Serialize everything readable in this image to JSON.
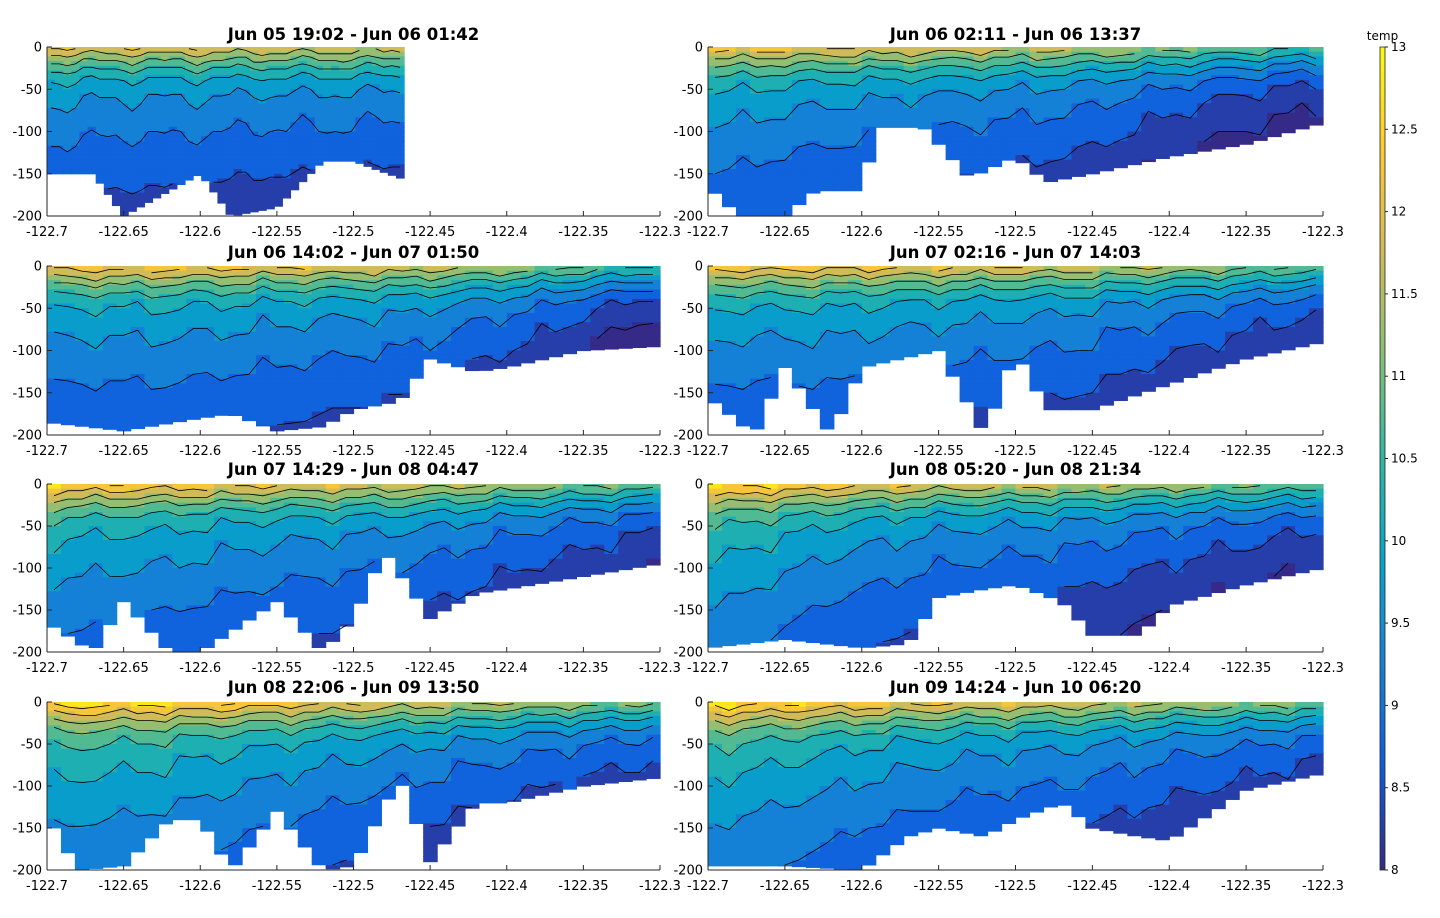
{
  "chart_data": {
    "type": "contour",
    "panels": [
      {
        "title": "Jun 05 19:02 - Jun 06 01:42",
        "xlim": [
          -122.7,
          -122.3
        ],
        "ylim": [
          -200,
          0
        ],
        "data_xrange": [
          -122.7,
          -122.467
        ],
        "surface_temp": [
          12.0,
          11.9,
          11.9,
          11.8,
          11.8,
          11.7
        ],
        "bottom_x": [
          -122.7,
          -122.67,
          -122.65,
          -122.6,
          -122.58,
          -122.55,
          -122.52,
          -122.5,
          -122.47
        ],
        "bottom_depth": [
          -150,
          -150,
          -200,
          -150,
          -200,
          -190,
          -135,
          -135,
          -155
        ]
      },
      {
        "title": "Jun 06 02:11 - Jun 06 13:37",
        "xlim": [
          -122.7,
          -122.3
        ],
        "ylim": [
          -200,
          0
        ],
        "data_xrange": [
          -122.7,
          -122.3
        ],
        "surface_temp": [
          12.3,
          12.0,
          11.8,
          11.6,
          11.0,
          10.5
        ],
        "bottom_x": [
          -122.7,
          -122.68,
          -122.65,
          -122.63,
          -122.6,
          -122.59,
          -122.56,
          -122.53,
          -122.5,
          -122.48,
          -122.45,
          -122.4,
          -122.35,
          -122.32,
          -122.3
        ],
        "bottom_depth": [
          -165,
          -200,
          -200,
          -170,
          -170,
          -95,
          -95,
          -155,
          -130,
          -160,
          -150,
          -130,
          -115,
          -100,
          -90
        ]
      },
      {
        "title": "Jun 06 14:02 - Jun 07 01:50",
        "xlim": [
          -122.7,
          -122.3
        ],
        "ylim": [
          -200,
          0
        ],
        "data_xrange": [
          -122.7,
          -122.3
        ],
        "surface_temp": [
          12.2,
          12.2,
          12.0,
          11.8,
          11.2,
          10.3
        ],
        "bottom_x": [
          -122.7,
          -122.65,
          -122.6,
          -122.58,
          -122.55,
          -122.52,
          -122.5,
          -122.47,
          -122.45,
          -122.42,
          -122.4,
          -122.35,
          -122.3
        ],
        "bottom_depth": [
          -185,
          -195,
          -180,
          -175,
          -195,
          -190,
          -170,
          -160,
          -110,
          -125,
          -120,
          -100,
          -95
        ]
      },
      {
        "title": "Jun 07 02:16 - Jun 07 14:03",
        "xlim": [
          -122.7,
          -122.3
        ],
        "ylim": [
          -200,
          0
        ],
        "data_xrange": [
          -122.7,
          -122.3
        ],
        "surface_temp": [
          12.2,
          12.2,
          12.0,
          11.8,
          11.3,
          10.8
        ],
        "bottom_x": [
          -122.7,
          -122.67,
          -122.65,
          -122.62,
          -122.6,
          -122.55,
          -122.52,
          -122.5,
          -122.48,
          -122.45,
          -122.4,
          -122.35,
          -122.3
        ],
        "bottom_depth": [
          -155,
          -200,
          -120,
          -200,
          -120,
          -100,
          -200,
          -100,
          -170,
          -170,
          -140,
          -110,
          -90
        ]
      },
      {
        "title": "Jun 07 14:29 - Jun 08 04:47",
        "xlim": [
          -122.7,
          -122.3
        ],
        "ylim": [
          -200,
          0
        ],
        "data_xrange": [
          -122.7,
          -122.3
        ],
        "surface_temp": [
          12.5,
          12.3,
          12.0,
          11.8,
          11.3,
          10.8
        ],
        "bottom_x": [
          -122.7,
          -122.67,
          -122.65,
          -122.62,
          -122.6,
          -122.55,
          -122.52,
          -122.5,
          -122.48,
          -122.45,
          -122.42,
          -122.4,
          -122.35,
          -122.3
        ],
        "bottom_depth": [
          -165,
          -200,
          -140,
          -200,
          -200,
          -140,
          -200,
          -160,
          -80,
          -160,
          -130,
          -125,
          -110,
          -95
        ]
      },
      {
        "title": "Jun 08 05:20 - Jun 08 21:34",
        "xlim": [
          -122.7,
          -122.3
        ],
        "ylim": [
          -200,
          0
        ],
        "data_xrange": [
          -122.7,
          -122.3
        ],
        "surface_temp": [
          12.8,
          12.2,
          11.8,
          11.6,
          11.2,
          10.8
        ],
        "bottom_x": [
          -122.7,
          -122.65,
          -122.6,
          -122.57,
          -122.55,
          -122.52,
          -122.5,
          -122.47,
          -122.45,
          -122.42,
          -122.4,
          -122.35,
          -122.3
        ],
        "bottom_depth": [
          -195,
          -185,
          -195,
          -190,
          -135,
          -125,
          -120,
          -140,
          -180,
          -180,
          -145,
          -120,
          -100
        ]
      },
      {
        "title": "Jun 08 22:06 - Jun 09 13:50",
        "xlim": [
          -122.7,
          -122.3
        ],
        "ylim": [
          -200,
          0
        ],
        "data_xrange": [
          -122.7,
          -122.3
        ],
        "surface_temp": [
          12.8,
          12.6,
          12.2,
          11.8,
          11.4,
          11.0
        ],
        "bottom_x": [
          -122.7,
          -122.68,
          -122.65,
          -122.62,
          -122.6,
          -122.58,
          -122.55,
          -122.52,
          -122.5,
          -122.47,
          -122.45,
          -122.42,
          -122.4,
          -122.35,
          -122.3
        ],
        "bottom_depth": [
          -135,
          -200,
          -195,
          -140,
          -140,
          -200,
          -130,
          -200,
          -195,
          -90,
          -190,
          -120,
          -120,
          -100,
          -90
        ]
      },
      {
        "title": "Jun 09 14:24 - Jun 10 06:20",
        "xlim": [
          -122.7,
          -122.3
        ],
        "ylim": [
          -200,
          0
        ],
        "data_xrange": [
          -122.7,
          -122.3
        ],
        "surface_temp": [
          12.8,
          12.4,
          12.0,
          11.8,
          11.4,
          11.0
        ],
        "bottom_x": [
          -122.7,
          -122.65,
          -122.6,
          -122.57,
          -122.55,
          -122.52,
          -122.5,
          -122.47,
          -122.45,
          -122.42,
          -122.4,
          -122.35,
          -122.3
        ],
        "bottom_depth": [
          -195,
          -195,
          -200,
          -160,
          -150,
          -160,
          -140,
          -120,
          -150,
          -160,
          -165,
          -105,
          -85
        ]
      }
    ],
    "xticks": [
      "-122.7",
      "-122.65",
      "-122.6",
      "-122.55",
      "-122.5",
      "-122.45",
      "-122.4",
      "-122.35",
      "-122.3"
    ],
    "xtick_values": [
      -122.7,
      -122.65,
      -122.6,
      -122.55,
      -122.5,
      -122.45,
      -122.4,
      -122.35,
      -122.3
    ],
    "yticks": [
      "0",
      "-50",
      "-100",
      "-150",
      "-200"
    ],
    "ytick_values": [
      0,
      -50,
      -100,
      -150,
      -200
    ],
    "colorbar": {
      "label": "temp",
      "range": [
        8,
        13
      ],
      "ticks": [
        "13",
        "12.5",
        "12",
        "11.5",
        "11",
        "10.5",
        "10",
        "9.5",
        "9",
        "8.5",
        "8"
      ],
      "tick_values": [
        13,
        12.5,
        12,
        11.5,
        11,
        10.5,
        10,
        9.5,
        9,
        8.5,
        8
      ]
    },
    "depth_profile": [
      {
        "depth": 0,
        "offset": 0.0
      },
      {
        "depth": -12,
        "offset": -0.7
      },
      {
        "depth": -25,
        "offset": -1.4
      },
      {
        "depth": -40,
        "offset": -2.0
      },
      {
        "depth": -60,
        "offset": -2.4
      },
      {
        "depth": -85,
        "offset": -2.7
      },
      {
        "depth": -115,
        "offset": -3.0
      },
      {
        "depth": -150,
        "offset": -3.3
      },
      {
        "depth": -200,
        "offset": -3.6
      }
    ],
    "colormap": [
      "#352a87",
      "#0f5cdd",
      "#1481d6",
      "#06a4ca",
      "#2eb7a4",
      "#87bf77",
      "#d1bb59",
      "#fec832",
      "#f9fb0e"
    ],
    "grid": false,
    "legend": "colorbar-right"
  }
}
